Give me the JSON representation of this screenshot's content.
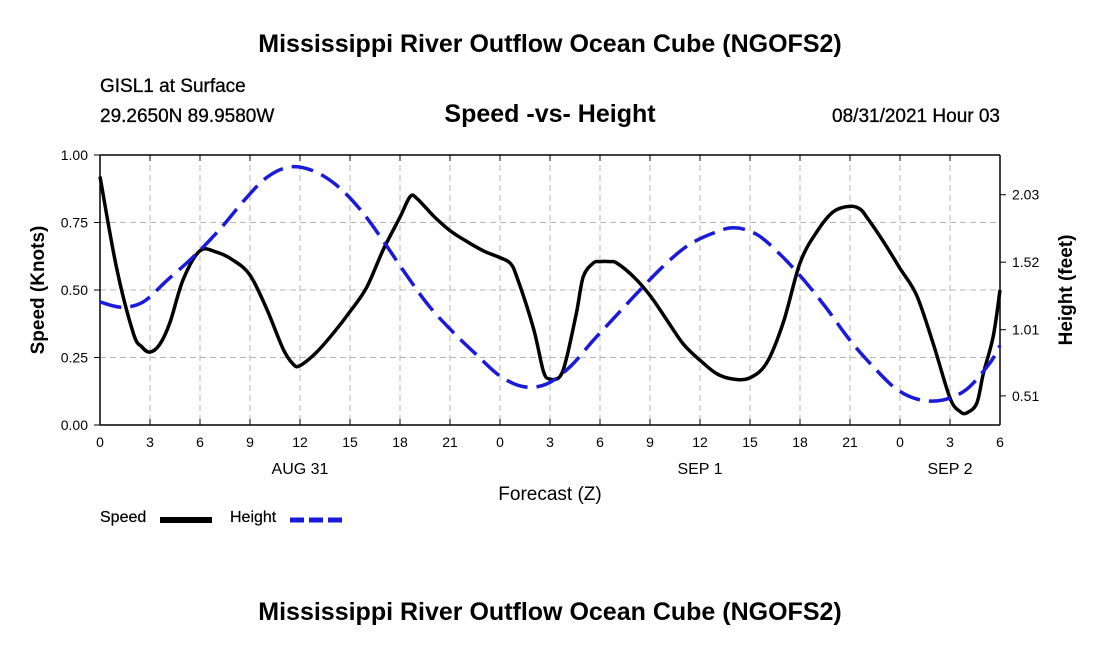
{
  "header": {
    "title": "Mississippi River Outflow Ocean Cube (NGOFS2)",
    "station": "GISL1 at Surface",
    "coords": "29.2650N  89.9580W",
    "subtitle": "Speed -vs- Height",
    "datetime": "08/31/2021 Hour 03"
  },
  "footer": {
    "title": "Mississippi River Outflow Ocean Cube (NGOFS2)"
  },
  "legend": {
    "speed_label": "Speed",
    "height_label": "Height"
  },
  "colors": {
    "speed": "#000000",
    "height": "#1a1adc",
    "grid": "#b4b4b4"
  },
  "chart_data": {
    "type": "line",
    "title": "Speed -vs- Height",
    "xlabel": "Forecast (Z)",
    "ylabel": "Speed (Knots)",
    "y2label": "Height (feet)",
    "xlim": [
      0,
      54
    ],
    "ylim": [
      0,
      1
    ],
    "y2lim": [
      0.29,
      2.33
    ],
    "x_ticks": [
      0,
      3,
      6,
      9,
      12,
      15,
      18,
      21,
      24,
      27,
      30,
      33,
      36,
      39,
      42,
      45,
      48,
      51,
      54
    ],
    "x_tick_labels": [
      "0",
      "3",
      "6",
      "9",
      "12",
      "15",
      "18",
      "21",
      "0",
      "3",
      "6",
      "9",
      "12",
      "15",
      "18",
      "21",
      "0",
      "3",
      "6"
    ],
    "date_labels": [
      {
        "x": 12,
        "label": "AUG 31"
      },
      {
        "x": 36,
        "label": "SEP 1"
      },
      {
        "x": 51,
        "label": "SEP 2"
      }
    ],
    "y_ticks": [
      0,
      0.25,
      0.5,
      0.75,
      1.0
    ],
    "y_tick_labels": [
      "0.00",
      "0.25",
      "0.50",
      "0.75",
      "1.00"
    ],
    "y2_ticks": [
      0.51,
      1.01,
      1.52,
      2.03
    ],
    "y2_tick_labels": [
      "0.51",
      "1.01",
      "1.52",
      "2.03"
    ],
    "legend": "bottom-left",
    "series": [
      {
        "name": "Speed",
        "axis": "left",
        "style": "solid",
        "x": [
          0,
          1,
          2,
          2.5,
          3,
          3.6,
          4.2,
          5,
          6,
          7,
          8,
          9,
          10,
          11,
          11.6,
          12,
          13,
          14,
          15,
          16,
          17,
          18,
          18.6,
          19,
          20,
          21,
          22,
          23,
          24,
          24.6,
          25,
          26,
          26.6,
          27,
          27.6,
          28,
          28.6,
          29,
          29.6,
          30,
          30.6,
          31,
          32,
          33,
          34,
          35,
          36,
          37,
          38,
          39,
          40,
          41,
          42,
          43,
          44,
          45,
          45.6,
          46,
          47,
          48,
          49,
          50,
          51,
          51.6,
          52,
          52.6,
          53,
          53.6,
          54
        ],
        "values": [
          0.92,
          0.58,
          0.34,
          0.29,
          0.27,
          0.3,
          0.38,
          0.54,
          0.645,
          0.64,
          0.61,
          0.555,
          0.43,
          0.28,
          0.225,
          0.22,
          0.27,
          0.34,
          0.42,
          0.51,
          0.65,
          0.77,
          0.845,
          0.84,
          0.775,
          0.72,
          0.68,
          0.645,
          0.62,
          0.6,
          0.55,
          0.36,
          0.2,
          0.17,
          0.18,
          0.25,
          0.42,
          0.55,
          0.6,
          0.605,
          0.605,
          0.6,
          0.55,
          0.48,
          0.39,
          0.3,
          0.24,
          0.19,
          0.17,
          0.175,
          0.23,
          0.38,
          0.6,
          0.715,
          0.79,
          0.81,
          0.8,
          0.77,
          0.68,
          0.58,
          0.48,
          0.3,
          0.1,
          0.05,
          0.045,
          0.08,
          0.19,
          0.33,
          0.5
        ]
      },
      {
        "name": "Height",
        "axis": "right",
        "style": "dashed",
        "x": [
          0,
          1.3,
          2.6,
          4,
          5.6,
          7.2,
          8.6,
          10,
          11.4,
          12.8,
          14.2,
          15.6,
          17,
          18.4,
          19.8,
          21.2,
          22.6,
          24,
          25.4,
          26.8,
          28.2,
          29.6,
          31,
          32.4,
          33.8,
          35.2,
          36.6,
          38,
          39.4,
          40.8,
          42.2,
          43.6,
          45,
          46.4,
          47.8,
          49.2,
          50.6,
          52,
          53.4,
          54
        ],
        "values": [
          1.22,
          1.18,
          1.22,
          1.38,
          1.56,
          1.77,
          1.98,
          2.16,
          2.24,
          2.21,
          2.1,
          1.92,
          1.68,
          1.42,
          1.18,
          0.99,
          0.82,
          0.66,
          0.58,
          0.6,
          0.73,
          0.93,
          1.12,
          1.31,
          1.49,
          1.64,
          1.73,
          1.78,
          1.73,
          1.58,
          1.39,
          1.17,
          0.93,
          0.73,
          0.56,
          0.48,
          0.48,
          0.56,
          0.76,
          0.89
        ]
      }
    ]
  }
}
